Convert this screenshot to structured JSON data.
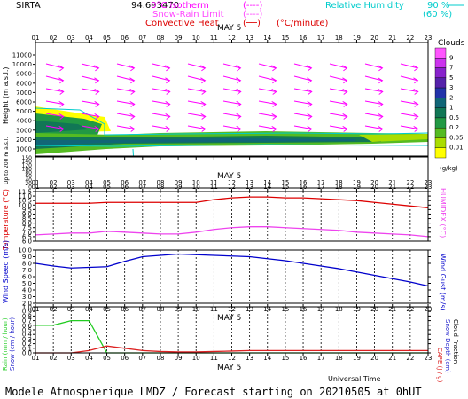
{
  "header": {
    "site": "SIRTA",
    "coord_partial": "94.693470",
    "legend_left": [
      {
        "label": "0°C isotherm",
        "sample": "(----)",
        "color": "#ff00ff"
      },
      {
        "label": "Snow-Rain Limit",
        "sample": "(----)",
        "color": "#ff44ff"
      },
      {
        "label": "Convective Heat",
        "sample": "(──)",
        "unit": "(°C/minute)",
        "color": "#dd0000"
      }
    ],
    "legend_right": [
      {
        "label": "Relative Humidity",
        "v1": "90 %",
        "v2": "(60 %)",
        "color": "#00cccc"
      }
    ]
  },
  "footer": {
    "title": "Modele Atmospherique LMDZ / Forecast starting on 20210505 at 0hUT"
  },
  "colors": {
    "frame": "#000000",
    "wind_arrow": "#ff00ff",
    "temperature": "#dd0000",
    "humidex": "#ee44ee",
    "wind_speed": "#0000cc",
    "rain": "#22cc22",
    "cape": "#dd2222",
    "cloud_colorbar": [
      "#ffff00",
      "#aadd00",
      "#55bb22",
      "#229944",
      "#117755",
      "#116677",
      "#2233aa",
      "#5522aa",
      "#8822cc",
      "#cc33ee",
      "#ff55ff"
    ]
  },
  "chart_data": [
    {
      "type": "heatmap",
      "name": "clouds-height",
      "xlabel_top": "MAY 5",
      "ylabel": "Height (m a.s.l.)",
      "ylabel2": "Up to 200 m a.s.l.",
      "x_ticks": [
        "01",
        "02",
        "03",
        "04",
        "05",
        "06",
        "07",
        "08",
        "09",
        "10",
        "11",
        "12",
        "13",
        "14",
        "15",
        "16",
        "17",
        "18",
        "19",
        "20",
        "21",
        "22",
        "23"
      ],
      "y_ticks_upper": [
        "11000",
        "10000",
        "9000",
        "8000",
        "7000",
        "6000",
        "5000",
        "4000",
        "3000",
        "2000",
        "1000"
      ],
      "y_ticks_lower": [
        "150",
        "140",
        "120",
        "100",
        "80",
        "60",
        "40",
        "20",
        "0"
      ],
      "colorbar_title": "Clouds",
      "colorbar_ticks": [
        "9",
        "7",
        "5",
        "3",
        "2",
        "1",
        "0.5",
        "0.2",
        "0.05",
        "0.01"
      ],
      "colorbar_unit": "(g/kg)"
    },
    {
      "type": "line",
      "name": "temperature-humidex",
      "xlabel_top": "MAY 5",
      "ylabel": "Temperature (°C)",
      "ylabel_right": "HUMIDEX (°C)",
      "y_ticks": [
        "11.5",
        "11.0",
        "10.5",
        "10.0",
        "9.5",
        "9.0",
        "8.5",
        "8.0",
        "7.5",
        "7.0",
        "6.5",
        "6.0"
      ],
      "ylim": [
        6.0,
        11.5
      ],
      "x": [
        1,
        2,
        3,
        4,
        5,
        6,
        7,
        8,
        9,
        10,
        11,
        12,
        13,
        14,
        15,
        16,
        17,
        18,
        19,
        20,
        21,
        22,
        23
      ],
      "series": [
        {
          "name": "Temperature",
          "values": [
            10.2,
            10.2,
            10.2,
            10.2,
            10.3,
            10.3,
            10.3,
            10.3,
            10.3,
            10.3,
            10.6,
            10.8,
            10.9,
            10.9,
            10.8,
            10.8,
            10.7,
            10.6,
            10.5,
            10.3,
            10.1,
            9.9,
            9.7
          ]
        },
        {
          "name": "HUMIDEX",
          "values": [
            6.7,
            6.8,
            6.9,
            6.9,
            7.1,
            7.0,
            6.9,
            6.8,
            6.8,
            7.0,
            7.3,
            7.5,
            7.6,
            7.6,
            7.5,
            7.4,
            7.3,
            7.2,
            7.0,
            6.9,
            6.8,
            6.7,
            6.5
          ]
        }
      ]
    },
    {
      "type": "line",
      "name": "wind",
      "ylabel": "Wind Speed (m/s)",
      "ylabel_right": "Wind Gust (m/s)",
      "y_ticks": [
        "10.0",
        "9.0",
        "8.0",
        "7.0",
        "6.0",
        "5.0",
        "4.0",
        "3.0",
        "2.0"
      ],
      "ylim": [
        2.0,
        10.0
      ],
      "x": [
        1,
        2,
        3,
        4,
        5,
        6,
        7,
        8,
        9,
        10,
        11,
        12,
        13,
        14,
        15,
        16,
        17,
        18,
        19,
        20,
        21,
        22,
        23
      ],
      "series": [
        {
          "name": "Wind Speed",
          "values": [
            8.0,
            7.6,
            7.3,
            7.4,
            7.5,
            8.3,
            9.0,
            9.2,
            9.4,
            9.3,
            9.2,
            9.1,
            9.0,
            8.7,
            8.4,
            8.0,
            7.6,
            7.2,
            6.7,
            6.2,
            5.7,
            5.2,
            4.6
          ]
        }
      ]
    },
    {
      "type": "line",
      "name": "precip",
      "xlabel_top": "MAY 5",
      "xlabel_bottom": "MAY 5",
      "xlabel_time": "Universal Time",
      "ylabel": "Rain (mm / hour)",
      "ylabel2": "Snow (cm / hour)",
      "ylabel_right": "CAPE (J / g)",
      "ylabel_right2": "Snow Depth (cm)",
      "ylabel_right3": "Cloud Fraction",
      "y_ticks": [
        "1.0",
        "0.9",
        "0.8",
        "0.7",
        "0.6",
        "0.5",
        "0.4",
        "0.3",
        "0.2",
        "0.1",
        "0.0"
      ],
      "ylim": [
        0.0,
        1.0
      ],
      "x": [
        1,
        2,
        3,
        4,
        5,
        6,
        7,
        8,
        9,
        10,
        11,
        12,
        13,
        14,
        15,
        16,
        17,
        18,
        19,
        20,
        21,
        22,
        23
      ],
      "series": [
        {
          "name": "Rain",
          "values": [
            0.6,
            0.6,
            0.7,
            0.7,
            0.0,
            0.0,
            0.0,
            0.0,
            0.0,
            0.0,
            0.0,
            0.0,
            0.0,
            0.0,
            0.0,
            0.0,
            0.0,
            0.0,
            0.0,
            0.0,
            0.0,
            0.0,
            0.0
          ]
        },
        {
          "name": "CAPE",
          "values": [
            0.0,
            0.0,
            0.0,
            0.05,
            0.15,
            0.1,
            0.05,
            0.03,
            0.02,
            0.02,
            0.03,
            0.04,
            0.05,
            0.05,
            0.05,
            0.05,
            0.05,
            0.05,
            0.05,
            0.05,
            0.05,
            0.05,
            0.05
          ]
        }
      ]
    }
  ]
}
